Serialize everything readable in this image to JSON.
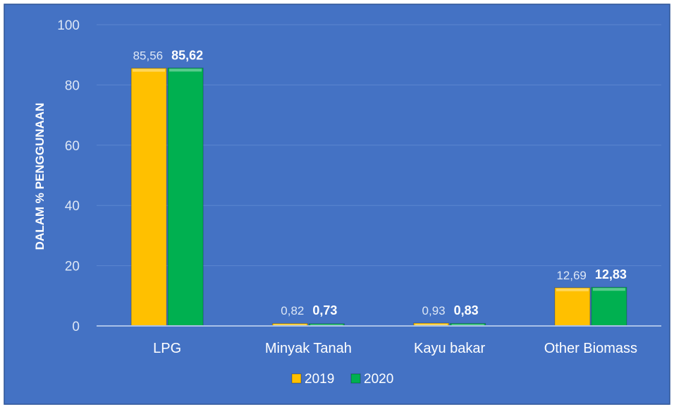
{
  "chart_data": {
    "type": "bar",
    "title": "",
    "xlabel": "",
    "ylabel": "DALAM % PENGGUNAAN",
    "ylim": [
      0,
      100
    ],
    "yticks": [
      "0",
      "20",
      "40",
      "60",
      "80",
      "100"
    ],
    "grid": true,
    "legend_position": "bottom",
    "categories": [
      "LPG",
      "Minyak Tanah",
      "Kayu bakar",
      "Other Biomass"
    ],
    "series": [
      {
        "name": "2019",
        "color": "#FFC000",
        "values": [
          85.56,
          0.82,
          0.93,
          12.69
        ],
        "labels": [
          "85,56",
          "0,82",
          "0,93",
          "12,69"
        ]
      },
      {
        "name": "2020",
        "color": "#00B050",
        "values": [
          85.62,
          0.73,
          0.83,
          12.83
        ],
        "labels": [
          "85,62",
          "0,73",
          "0,83",
          "12,83"
        ]
      }
    ]
  },
  "colors": {
    "background": "#4472C4",
    "border": "#2E5597",
    "gridline": "#5B86D0",
    "axis": "#A9C1E8",
    "text": "#FFFFFF",
    "tick_text": "#DCE6F5"
  }
}
